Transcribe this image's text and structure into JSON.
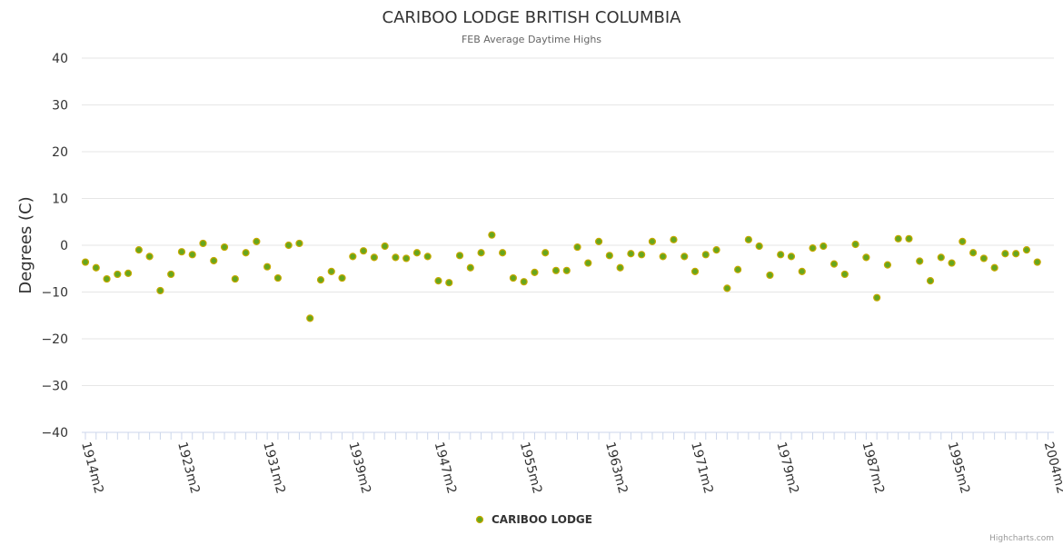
{
  "chart_data": {
    "type": "scatter",
    "title": "CARIBOO LODGE BRITISH COLUMBIA",
    "subtitle": "FEB Average Daytime Highs",
    "ylabel": "Degrees (C)",
    "xlabel": "",
    "ylim": [
      -40,
      40
    ],
    "yticks": [
      40,
      30,
      20,
      10,
      0,
      -10,
      -20,
      -30,
      -40
    ],
    "x_start_year": 1914,
    "x_end_year": 2004,
    "x_tick_labels": [
      {
        "year": 1914,
        "label": "1914m2"
      },
      {
        "year": 1923,
        "label": "1923m2"
      },
      {
        "year": 1931,
        "label": "1931m2"
      },
      {
        "year": 1939,
        "label": "1939m2"
      },
      {
        "year": 1947,
        "label": "1947m2"
      },
      {
        "year": 1955,
        "label": "1955m2"
      },
      {
        "year": 1963,
        "label": "1963m2"
      },
      {
        "year": 1971,
        "label": "1971m2"
      },
      {
        "year": 1979,
        "label": "1979m2"
      },
      {
        "year": 1987,
        "label": "1987m2"
      },
      {
        "year": 1995,
        "label": "1995m2"
      },
      {
        "year": 2004,
        "label": "2004m2"
      }
    ],
    "series": [
      {
        "name": "CARIBOO LODGE",
        "color": "#6aa000",
        "marker_fill": "#66a61e",
        "marker_stroke": "#c7a900",
        "points": [
          {
            "x": 1914,
            "y": -3.6
          },
          {
            "x": 1915,
            "y": -4.8
          },
          {
            "x": 1916,
            "y": -7.2
          },
          {
            "x": 1917,
            "y": -6.2
          },
          {
            "x": 1918,
            "y": -6.0
          },
          {
            "x": 1919,
            "y": -1.0
          },
          {
            "x": 1920,
            "y": -2.4
          },
          {
            "x": 1921,
            "y": -9.7
          },
          {
            "x": 1922,
            "y": -6.2
          },
          {
            "x": 1923,
            "y": -1.4
          },
          {
            "x": 1924,
            "y": -2.0
          },
          {
            "x": 1925,
            "y": 0.4
          },
          {
            "x": 1926,
            "y": -3.3
          },
          {
            "x": 1927,
            "y": -0.4
          },
          {
            "x": 1928,
            "y": -7.2
          },
          {
            "x": 1929,
            "y": -1.6
          },
          {
            "x": 1930,
            "y": 0.8
          },
          {
            "x": 1931,
            "y": -4.6
          },
          {
            "x": 1932,
            "y": -7.0
          },
          {
            "x": 1933,
            "y": 0.0
          },
          {
            "x": 1934,
            "y": 0.4
          },
          {
            "x": 1935,
            "y": -15.6
          },
          {
            "x": 1936,
            "y": -7.4
          },
          {
            "x": 1937,
            "y": -5.6
          },
          {
            "x": 1938,
            "y": -7.0
          },
          {
            "x": 1939,
            "y": -2.4
          },
          {
            "x": 1940,
            "y": -1.2
          },
          {
            "x": 1941,
            "y": -2.6
          },
          {
            "x": 1942,
            "y": -0.2
          },
          {
            "x": 1943,
            "y": -2.6
          },
          {
            "x": 1944,
            "y": -2.8
          },
          {
            "x": 1945,
            "y": -1.6
          },
          {
            "x": 1946,
            "y": -2.4
          },
          {
            "x": 1947,
            "y": -7.6
          },
          {
            "x": 1948,
            "y": -8.0
          },
          {
            "x": 1949,
            "y": -2.2
          },
          {
            "x": 1950,
            "y": -4.8
          },
          {
            "x": 1951,
            "y": -1.6
          },
          {
            "x": 1952,
            "y": 2.2
          },
          {
            "x": 1953,
            "y": -1.6
          },
          {
            "x": 1954,
            "y": -7.0
          },
          {
            "x": 1955,
            "y": -7.8
          },
          {
            "x": 1956,
            "y": -5.8
          },
          {
            "x": 1957,
            "y": -1.6
          },
          {
            "x": 1958,
            "y": -5.4
          },
          {
            "x": 1959,
            "y": -5.4
          },
          {
            "x": 1960,
            "y": -0.4
          },
          {
            "x": 1961,
            "y": -3.8
          },
          {
            "x": 1962,
            "y": 0.8
          },
          {
            "x": 1963,
            "y": -2.2
          },
          {
            "x": 1964,
            "y": -4.8
          },
          {
            "x": 1965,
            "y": -1.8
          },
          {
            "x": 1966,
            "y": -2.0
          },
          {
            "x": 1967,
            "y": 0.8
          },
          {
            "x": 1968,
            "y": -2.4
          },
          {
            "x": 1969,
            "y": 1.2
          },
          {
            "x": 1970,
            "y": -2.4
          },
          {
            "x": 1971,
            "y": -5.6
          },
          {
            "x": 1972,
            "y": -2.0
          },
          {
            "x": 1973,
            "y": -1.0
          },
          {
            "x": 1974,
            "y": -9.2
          },
          {
            "x": 1975,
            "y": -5.2
          },
          {
            "x": 1976,
            "y": 1.2
          },
          {
            "x": 1977,
            "y": -0.2
          },
          {
            "x": 1978,
            "y": -6.4
          },
          {
            "x": 1979,
            "y": -2.0
          },
          {
            "x": 1980,
            "y": -2.4
          },
          {
            "x": 1981,
            "y": -5.6
          },
          {
            "x": 1982,
            "y": -0.6
          },
          {
            "x": 1983,
            "y": -0.2
          },
          {
            "x": 1984,
            "y": -4.0
          },
          {
            "x": 1985,
            "y": -6.2
          },
          {
            "x": 1986,
            "y": 0.2
          },
          {
            "x": 1987,
            "y": -2.6
          },
          {
            "x": 1988,
            "y": -11.2
          },
          {
            "x": 1989,
            "y": -4.2
          },
          {
            "x": 1990,
            "y": 1.4
          },
          {
            "x": 1991,
            "y": 1.4
          },
          {
            "x": 1992,
            "y": -3.4
          },
          {
            "x": 1993,
            "y": -7.6
          },
          {
            "x": 1994,
            "y": -2.6
          },
          {
            "x": 1995,
            "y": -3.8
          },
          {
            "x": 1996,
            "y": 0.8
          },
          {
            "x": 1997,
            "y": -1.6
          },
          {
            "x": 1998,
            "y": -2.8
          },
          {
            "x": 1999,
            "y": -4.8
          },
          {
            "x": 2000,
            "y": -1.8
          },
          {
            "x": 2001,
            "y": -1.8
          },
          {
            "x": 2002,
            "y": -1.0
          },
          {
            "x": 2003,
            "y": -3.6
          }
        ]
      }
    ],
    "legend": {
      "position": "bottom-center",
      "label": "CARIBOO LODGE"
    },
    "grid": true
  },
  "credits": "Highcharts.com"
}
